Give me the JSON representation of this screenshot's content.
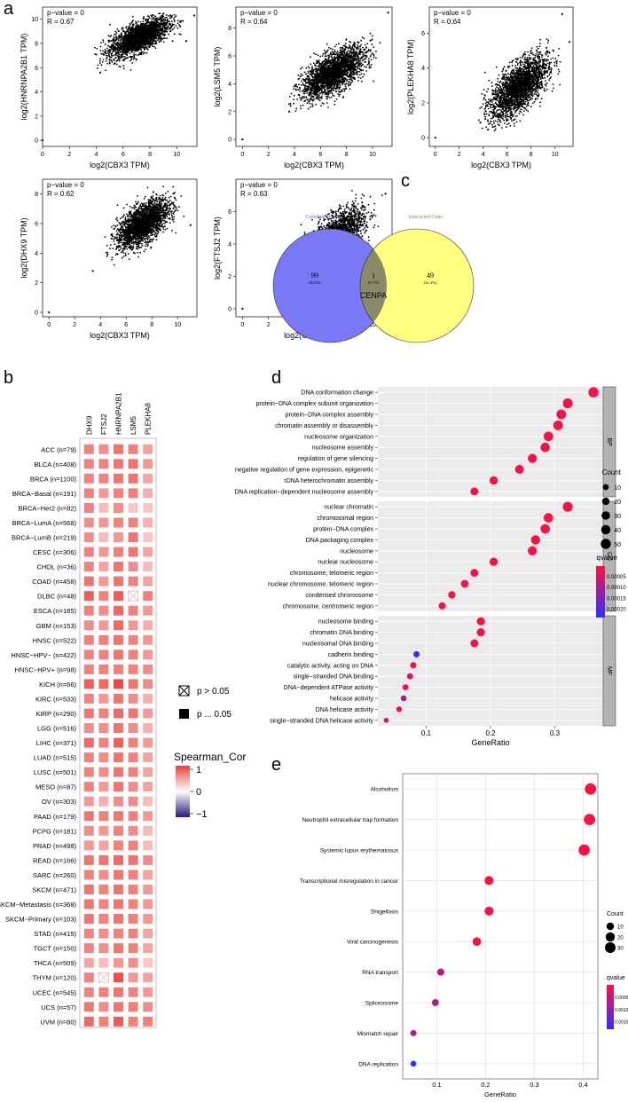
{
  "panels": {
    "a": "a",
    "b": "b",
    "c": "c",
    "d": "d",
    "e": "e"
  },
  "chart_data": [
    {
      "panel": "a",
      "type": "scatter",
      "xlabel": "log2(CBX3 TPM)",
      "ylabel": "log2(HNRNPA2B1 TPM)",
      "annotation": [
        "p−value = 0",
        "R = 0.67"
      ],
      "xlim": [
        0,
        11.5
      ],
      "ylim": [
        -0.5,
        11
      ],
      "xticks": [
        0,
        2,
        4,
        6,
        8,
        10
      ],
      "yticks": [
        0,
        2,
        4,
        6,
        8,
        10
      ],
      "cloud": {
        "x_center": 7.2,
        "y_center": 8.5,
        "x_sd": 1.1,
        "y_sd": 0.8,
        "r": 0.67,
        "x_min": 3.8,
        "x_max": 10.8,
        "y_min": 5.3,
        "y_max": 10.5
      },
      "outliers": [
        [
          0,
          0
        ],
        [
          11.3,
          10.3
        ],
        [
          4.3,
          5.6
        ],
        [
          10.7,
          8.2
        ]
      ]
    },
    {
      "panel": "a",
      "type": "scatter",
      "xlabel": "log2(CBX3 TPM)",
      "ylabel": "log2(LSM5 TPM)",
      "annotation": [
        "p−value = 0",
        "R = 0.64"
      ],
      "xlim": [
        -0.5,
        11.5
      ],
      "ylim": [
        -0.5,
        9.5
      ],
      "xticks": [
        0,
        2,
        4,
        6,
        8,
        10
      ],
      "yticks": [
        0,
        2,
        4,
        6,
        8
      ],
      "cloud": {
        "x_center": 7.0,
        "y_center": 4.8,
        "x_sd": 1.2,
        "y_sd": 0.9,
        "r": 0.64,
        "x_min": 3.5,
        "x_max": 10.8,
        "y_min": 1.7,
        "y_max": 8.2
      },
      "outliers": [
        [
          0,
          0
        ],
        [
          11.2,
          9.1
        ],
        [
          3.6,
          2.0
        ]
      ]
    },
    {
      "panel": "a",
      "type": "scatter",
      "xlabel": "log2(CBX3 TPM)",
      "ylabel": "log2(PLEKHA8 TPM)",
      "annotation": [
        "p−value = 0",
        "R = 0.64"
      ],
      "xlim": [
        -0.5,
        11.5
      ],
      "ylim": [
        -0.5,
        7.5
      ],
      "xticks": [
        0,
        2,
        4,
        6,
        8,
        10
      ],
      "yticks": [
        0,
        2,
        4,
        6
      ],
      "cloud": {
        "x_center": 7.0,
        "y_center": 2.9,
        "x_sd": 1.2,
        "y_sd": 0.9,
        "r": 0.64,
        "x_min": 3.6,
        "x_max": 10.5,
        "y_min": 0.4,
        "y_max": 5.8
      },
      "outliers": [
        [
          0,
          0
        ],
        [
          10.6,
          7.1
        ],
        [
          11.2,
          5.5
        ]
      ]
    },
    {
      "panel": "a",
      "type": "scatter",
      "xlabel": "log2(CBX3 TPM)",
      "ylabel": "log2(DHX9 TPM)",
      "annotation": [
        "p−value = 0",
        "R = 0.62"
      ],
      "xlim": [
        -0.5,
        11.5
      ],
      "ylim": [
        -0.3,
        9.0
      ],
      "xticks": [
        0,
        2,
        4,
        6,
        8,
        10
      ],
      "yticks": [
        0,
        2,
        4,
        6,
        8
      ],
      "cloud": {
        "x_center": 7.3,
        "y_center": 6.0,
        "x_sd": 1.0,
        "y_sd": 0.8,
        "r": 0.62,
        "x_min": 3.4,
        "x_max": 10.6,
        "y_min": 2.7,
        "y_max": 8.5
      },
      "outliers": [
        [
          0,
          0
        ],
        [
          11.0,
          5.9
        ],
        [
          3.4,
          2.8
        ]
      ]
    },
    {
      "panel": "a",
      "type": "scatter",
      "xlabel": "log2(CBX3 TPM)",
      "ylabel": "log2(FTSJ2 TPM)",
      "annotation": [
        "p−value = 0",
        "R = 0.63"
      ],
      "xlim": [
        -0.5,
        11.5
      ],
      "ylim": [
        -0.5,
        8.0
      ],
      "xticks": [
        0,
        2,
        4,
        6,
        8,
        10
      ],
      "yticks": [
        0,
        2,
        4,
        6
      ],
      "cloud": {
        "x_center": 7.1,
        "y_center": 4.3,
        "x_sd": 1.1,
        "y_sd": 0.9,
        "r": 0.63,
        "x_min": 3.6,
        "x_max": 10.8,
        "y_min": 1.3,
        "y_max": 7.6
      },
      "outliers": [
        [
          0,
          0
        ],
        [
          11.0,
          7.1
        ]
      ]
    },
    {
      "panel": "b",
      "type": "heatmap",
      "columns": [
        "DHX9",
        "FTSJ2",
        "HNRNPA2B1",
        "LSM5",
        "PLEKHA8"
      ],
      "rows": [
        "ACC (n=79)",
        "BLCA (n=408)",
        "BRCA (n=1100)",
        "BRCA−Basal (n=191)",
        "BRCA−Her2 (n=82)",
        "BRCA−LumA (n=568)",
        "BRCA−LumB (n=219)",
        "CESC (n=306)",
        "CHOL (n=36)",
        "COAD (n=458)",
        "DLBC (n=48)",
        "ESCA (n=185)",
        "GBM (n=153)",
        "HNSC (n=522)",
        "HNSC−HPV− (n=422)",
        "HNSC−HPV+ (n=98)",
        "KICH (n=66)",
        "KIRC (n=533)",
        "KIRP (n=290)",
        "LGG (n=516)",
        "LIHC (n=371)",
        "LUAD (n=515)",
        "LUSC (n=501)",
        "MESO (n=87)",
        "OV (n=303)",
        "PAAD (n=179)",
        "PCPG (n=181)",
        "PRAD (n=498)",
        "READ (n=166)",
        "SARC (n=260)",
        "SKCM (n=471)",
        "SKCM−Metastasis (n=368)",
        "SKCM−Primary (n=103)",
        "STAD (n=415)",
        "TGCT (n=150)",
        "THCA (n=509)",
        "THYM (n=120)",
        "UCEC (n=545)",
        "UCS (n=57)",
        "UVM (n=80)"
      ],
      "values": [
        [
          0.55,
          0.5,
          0.6,
          0.55,
          0.4
        ],
        [
          0.55,
          0.55,
          0.6,
          0.6,
          0.45
        ],
        [
          0.55,
          0.55,
          0.6,
          0.6,
          0.4
        ],
        [
          0.55,
          0.45,
          0.55,
          0.55,
          0.35
        ],
        [
          0.55,
          0.3,
          0.5,
          0.25,
          0.25
        ],
        [
          0.5,
          0.45,
          0.55,
          0.55,
          0.35
        ],
        [
          0.5,
          0.3,
          0.45,
          0.6,
          0.25
        ],
        [
          0.55,
          0.45,
          0.55,
          0.6,
          0.4
        ],
        [
          0.55,
          0.4,
          0.6,
          0.5,
          0.3
        ],
        [
          0.6,
          0.45,
          0.6,
          0.55,
          0.4
        ],
        [
          0.7,
          0.55,
          0.7,
          0.05,
          0.55
        ],
        [
          0.55,
          0.5,
          0.65,
          0.55,
          0.45
        ],
        [
          0.5,
          0.45,
          0.65,
          0.45,
          0.35
        ],
        [
          0.55,
          0.55,
          0.6,
          0.55,
          0.45
        ],
        [
          0.55,
          0.55,
          0.6,
          0.55,
          0.45
        ],
        [
          0.55,
          0.55,
          0.55,
          0.55,
          0.5
        ],
        [
          0.7,
          0.65,
          0.8,
          0.6,
          0.5
        ],
        [
          0.55,
          0.45,
          0.6,
          0.5,
          0.35
        ],
        [
          0.6,
          0.55,
          0.65,
          0.6,
          0.45
        ],
        [
          0.5,
          0.5,
          0.6,
          0.5,
          0.35
        ],
        [
          0.65,
          0.55,
          0.7,
          0.55,
          0.45
        ],
        [
          0.55,
          0.5,
          0.6,
          0.55,
          0.4
        ],
        [
          0.55,
          0.5,
          0.6,
          0.55,
          0.4
        ],
        [
          0.55,
          0.45,
          0.6,
          0.5,
          0.4
        ],
        [
          0.45,
          0.35,
          0.5,
          0.5,
          0.3
        ],
        [
          0.6,
          0.55,
          0.6,
          0.55,
          0.45
        ],
        [
          0.5,
          0.45,
          0.55,
          0.5,
          0.3
        ],
        [
          0.45,
          0.4,
          0.55,
          0.55,
          0.3
        ],
        [
          0.6,
          0.6,
          0.65,
          0.6,
          0.5
        ],
        [
          0.55,
          0.5,
          0.6,
          0.55,
          0.4
        ],
        [
          0.6,
          0.55,
          0.6,
          0.55,
          0.45
        ],
        [
          0.6,
          0.55,
          0.6,
          0.55,
          0.45
        ],
        [
          0.6,
          0.55,
          0.6,
          0.55,
          0.45
        ],
        [
          0.55,
          0.5,
          0.55,
          0.55,
          0.4
        ],
        [
          0.55,
          0.5,
          0.6,
          0.55,
          0.4
        ],
        [
          0.4,
          0.3,
          0.45,
          0.5,
          0.25
        ],
        [
          0.55,
          0.05,
          0.75,
          0.45,
          0.4
        ],
        [
          0.55,
          0.55,
          0.6,
          0.55,
          0.45
        ],
        [
          0.6,
          0.5,
          0.6,
          0.55,
          0.5
        ],
        [
          0.65,
          0.55,
          0.7,
          0.55,
          0.55
        ]
      ],
      "not_significant": [
        [
          10,
          3
        ],
        [
          36,
          1
        ]
      ],
      "legend_p": [
        "p > 0.05",
        "p ... 0.05"
      ],
      "colorbar": {
        "title": "Spearman_Cor",
        "ticks": [
          "1",
          "0",
          "−1"
        ],
        "low": "#2a1a7a",
        "mid": "#ffffff",
        "high": "#e8413a"
      }
    },
    {
      "panel": "c",
      "type": "venn",
      "sets": [
        {
          "name": "Correlated Gene",
          "only": "99",
          "only_pct": "(49.5%)"
        },
        {
          "name": "Interacted Gene",
          "only": "49",
          "only_pct": "(32.3%)"
        }
      ],
      "intersection": {
        "count": "1",
        "pct": "(0.7%)",
        "label": "CENPA"
      },
      "colors": {
        "left": "#7a79f5",
        "right": "#ffff80",
        "overlap": "#8a8a68",
        "left_label": "#5757d6",
        "right_label": "#8c8c30"
      }
    },
    {
      "panel": "d",
      "type": "scatter",
      "xlabel": "GeneRatio",
      "xlim": [
        0.025,
        0.375
      ],
      "xticks": [
        0.1,
        0.2,
        0.3
      ],
      "groups": [
        {
          "name": "BP",
          "terms": [
            "DNA conformation change",
            "protein−DNA complex subunit organization",
            "protein−DNA complex assembly",
            "chromatin assembly or disassembly",
            "nucleosome organization",
            "nucleosome assembly",
            "regulation of gene silencing",
            "negative regulation of gene expression, epigenetic",
            "rDNA heterochromatin assembly",
            "DNA replication−dependent nucleosome assembly"
          ],
          "ratio": [
            0.36,
            0.32,
            0.31,
            0.305,
            0.29,
            0.285,
            0.265,
            0.245,
            0.205,
            0.175
          ],
          "count": [
            52,
            47,
            45,
            44,
            42,
            41,
            38,
            35,
            29,
            25
          ],
          "qvalue": [
            1e-05,
            1e-05,
            1e-05,
            1e-05,
            1e-05,
            1e-05,
            1e-05,
            1e-05,
            1e-05,
            1e-05
          ]
        },
        {
          "name": "CC",
          "terms": [
            "nuclear chromatin",
            "chromosomal region",
            "protein−DNA complex",
            "DNA packaging complex",
            "nucleosome",
            "nuclear nucleosome",
            "chromosome, telomeric region",
            "nuclear chromosome, telomeric region",
            "condensed chromosome",
            "chromosome, centromeric region"
          ],
          "ratio": [
            0.32,
            0.29,
            0.285,
            0.27,
            0.265,
            0.205,
            0.175,
            0.16,
            0.14,
            0.125
          ],
          "count": [
            47,
            42,
            41,
            39,
            38,
            29,
            25,
            23,
            20,
            18
          ],
          "qvalue": [
            1e-05,
            1e-05,
            1e-05,
            1e-05,
            1e-05,
            1e-05,
            1e-05,
            1e-05,
            1e-05,
            1e-05
          ]
        },
        {
          "name": "MF",
          "terms": [
            "nucleosome binding",
            "chromatin DNA binding",
            "nucleosomal DNA binding",
            "cadherin binding",
            "catalytic activity, acting on DNA",
            "single−stranded DNA binding",
            "DNA−dependent ATPase activity",
            "helicase activity",
            "DNA helicase activity",
            "single−stranded DNA helicase activity"
          ],
          "ratio": [
            0.185,
            0.185,
            0.175,
            0.085,
            0.08,
            0.075,
            0.068,
            0.065,
            0.058,
            0.038
          ],
          "count": [
            27,
            27,
            25,
            12,
            12,
            11,
            10,
            9,
            8,
            5
          ],
          "qvalue": [
            1e-05,
            1e-05,
            2e-05,
            0.00023,
            3e-05,
            4e-05,
            2e-05,
            0.00011,
            2e-05,
            2e-05
          ]
        }
      ],
      "size_legend": {
        "title": "Count",
        "values": [
          10,
          20,
          30,
          40,
          50
        ]
      },
      "color_legend": {
        "title": "qvalue",
        "ticks": [
          "0.00005",
          "0.00010",
          "0.00015",
          "0.00020"
        ],
        "min": 0.0,
        "max": 0.00024,
        "low": "#ff1040",
        "high": "#3030ff"
      }
    },
    {
      "panel": "e",
      "type": "scatter",
      "xlabel": "GeneRatio",
      "xlim": [
        0.03,
        0.43
      ],
      "xticks": [
        0.1,
        0.2,
        0.3,
        0.4
      ],
      "terms": [
        "Alcoholism",
        "Neutrophil extracellular trap formation",
        "Systemic lupus erythematosus",
        "Transcriptional misregulation in cancer",
        "Shigellosis",
        "Viral carcinogenesis",
        "RNA transport",
        "Spliceosome",
        "Mismatch repair",
        "DNA replication"
      ],
      "ratio": [
        0.415,
        0.413,
        0.402,
        0.207,
        0.207,
        0.182,
        0.108,
        0.097,
        0.052,
        0.052
      ],
      "count": [
        36,
        36,
        35,
        18,
        18,
        16,
        9,
        8,
        5,
        4
      ],
      "qvalue": [
        2e-05,
        2e-05,
        2e-05,
        3e-05,
        3e-05,
        4e-05,
        0.0006,
        0.0007,
        0.0007,
        0.0018
      ],
      "size_legend": {
        "title": "Count",
        "values": [
          10,
          20,
          30
        ]
      },
      "color_legend": {
        "title": "qvalue",
        "ticks": [
          "0.0005",
          "0.0010",
          "0.0015"
        ],
        "min": 0.0,
        "max": 0.0018,
        "low": "#ff1040",
        "high": "#3030ff"
      }
    }
  ]
}
